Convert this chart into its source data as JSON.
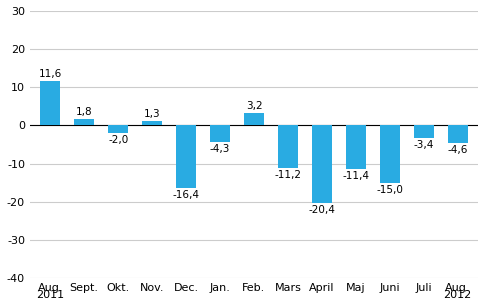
{
  "categories": [
    "Aug.",
    "Sept.",
    "Okt.",
    "Nov.",
    "Dec.",
    "Jan.",
    "Feb.",
    "Mars",
    "April",
    "Maj",
    "Juni",
    "Juli",
    "Aug."
  ],
  "values": [
    11.6,
    1.8,
    -2.0,
    1.3,
    -16.4,
    -4.3,
    3.2,
    -11.2,
    -20.4,
    -11.4,
    -15.0,
    -3.4,
    -4.6
  ],
  "bar_color": "#29abe2",
  "ylim": [
    -40,
    30
  ],
  "yticks": [
    -40,
    -30,
    -20,
    -10,
    0,
    10,
    20,
    30
  ],
  "background_color": "#ffffff",
  "grid_color": "#cccccc",
  "label_fontsize": 7.5,
  "tick_fontsize": 8,
  "year_fontsize": 8
}
